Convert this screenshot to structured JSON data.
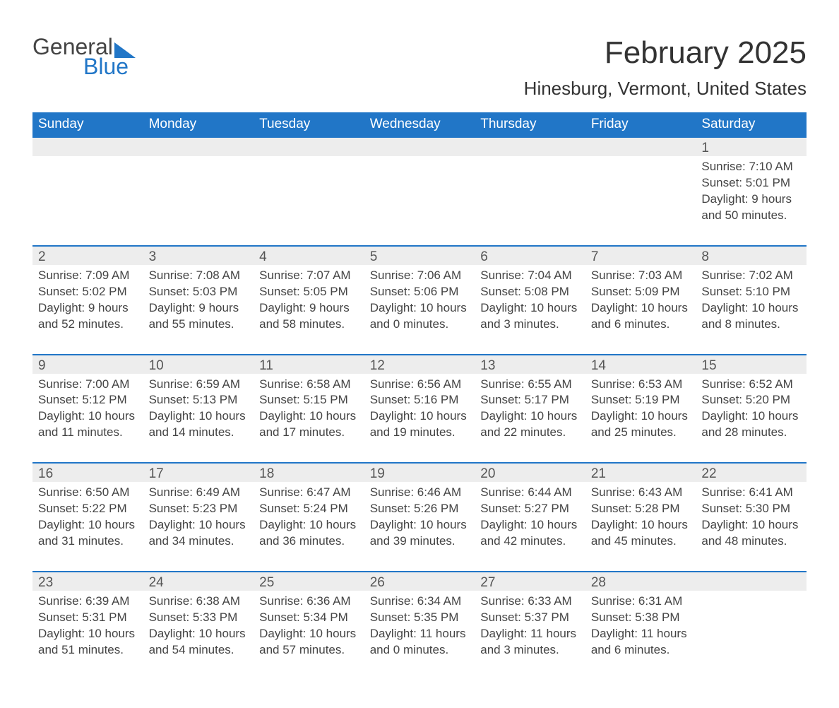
{
  "brand": {
    "word1": "General",
    "word2": "Blue",
    "accent_color": "#2176c7"
  },
  "title": "February 2025",
  "location": "Hinesburg, Vermont, United States",
  "colors": {
    "header_bg": "#2176c7",
    "header_text": "#ffffff",
    "daynum_bg": "#ededed",
    "row_border": "#2176c7",
    "body_text": "#444444",
    "page_bg": "#ffffff"
  },
  "typography": {
    "title_fontsize": 44,
    "location_fontsize": 26,
    "header_fontsize": 19,
    "cell_fontsize": 17
  },
  "layout": {
    "columns": 7,
    "rows": 5
  },
  "day_headers": [
    "Sunday",
    "Monday",
    "Tuesday",
    "Wednesday",
    "Thursday",
    "Friday",
    "Saturday"
  ],
  "weeks": [
    [
      {
        "day": "",
        "sunrise": "",
        "sunset": "",
        "daylight": ""
      },
      {
        "day": "",
        "sunrise": "",
        "sunset": "",
        "daylight": ""
      },
      {
        "day": "",
        "sunrise": "",
        "sunset": "",
        "daylight": ""
      },
      {
        "day": "",
        "sunrise": "",
        "sunset": "",
        "daylight": ""
      },
      {
        "day": "",
        "sunrise": "",
        "sunset": "",
        "daylight": ""
      },
      {
        "day": "",
        "sunrise": "",
        "sunset": "",
        "daylight": ""
      },
      {
        "day": "1",
        "sunrise": "Sunrise: 7:10 AM",
        "sunset": "Sunset: 5:01 PM",
        "daylight": "Daylight: 9 hours and 50 minutes."
      }
    ],
    [
      {
        "day": "2",
        "sunrise": "Sunrise: 7:09 AM",
        "sunset": "Sunset: 5:02 PM",
        "daylight": "Daylight: 9 hours and 52 minutes."
      },
      {
        "day": "3",
        "sunrise": "Sunrise: 7:08 AM",
        "sunset": "Sunset: 5:03 PM",
        "daylight": "Daylight: 9 hours and 55 minutes."
      },
      {
        "day": "4",
        "sunrise": "Sunrise: 7:07 AM",
        "sunset": "Sunset: 5:05 PM",
        "daylight": "Daylight: 9 hours and 58 minutes."
      },
      {
        "day": "5",
        "sunrise": "Sunrise: 7:06 AM",
        "sunset": "Sunset: 5:06 PM",
        "daylight": "Daylight: 10 hours and 0 minutes."
      },
      {
        "day": "6",
        "sunrise": "Sunrise: 7:04 AM",
        "sunset": "Sunset: 5:08 PM",
        "daylight": "Daylight: 10 hours and 3 minutes."
      },
      {
        "day": "7",
        "sunrise": "Sunrise: 7:03 AM",
        "sunset": "Sunset: 5:09 PM",
        "daylight": "Daylight: 10 hours and 6 minutes."
      },
      {
        "day": "8",
        "sunrise": "Sunrise: 7:02 AM",
        "sunset": "Sunset: 5:10 PM",
        "daylight": "Daylight: 10 hours and 8 minutes."
      }
    ],
    [
      {
        "day": "9",
        "sunrise": "Sunrise: 7:00 AM",
        "sunset": "Sunset: 5:12 PM",
        "daylight": "Daylight: 10 hours and 11 minutes."
      },
      {
        "day": "10",
        "sunrise": "Sunrise: 6:59 AM",
        "sunset": "Sunset: 5:13 PM",
        "daylight": "Daylight: 10 hours and 14 minutes."
      },
      {
        "day": "11",
        "sunrise": "Sunrise: 6:58 AM",
        "sunset": "Sunset: 5:15 PM",
        "daylight": "Daylight: 10 hours and 17 minutes."
      },
      {
        "day": "12",
        "sunrise": "Sunrise: 6:56 AM",
        "sunset": "Sunset: 5:16 PM",
        "daylight": "Daylight: 10 hours and 19 minutes."
      },
      {
        "day": "13",
        "sunrise": "Sunrise: 6:55 AM",
        "sunset": "Sunset: 5:17 PM",
        "daylight": "Daylight: 10 hours and 22 minutes."
      },
      {
        "day": "14",
        "sunrise": "Sunrise: 6:53 AM",
        "sunset": "Sunset: 5:19 PM",
        "daylight": "Daylight: 10 hours and 25 minutes."
      },
      {
        "day": "15",
        "sunrise": "Sunrise: 6:52 AM",
        "sunset": "Sunset: 5:20 PM",
        "daylight": "Daylight: 10 hours and 28 minutes."
      }
    ],
    [
      {
        "day": "16",
        "sunrise": "Sunrise: 6:50 AM",
        "sunset": "Sunset: 5:22 PM",
        "daylight": "Daylight: 10 hours and 31 minutes."
      },
      {
        "day": "17",
        "sunrise": "Sunrise: 6:49 AM",
        "sunset": "Sunset: 5:23 PM",
        "daylight": "Daylight: 10 hours and 34 minutes."
      },
      {
        "day": "18",
        "sunrise": "Sunrise: 6:47 AM",
        "sunset": "Sunset: 5:24 PM",
        "daylight": "Daylight: 10 hours and 36 minutes."
      },
      {
        "day": "19",
        "sunrise": "Sunrise: 6:46 AM",
        "sunset": "Sunset: 5:26 PM",
        "daylight": "Daylight: 10 hours and 39 minutes."
      },
      {
        "day": "20",
        "sunrise": "Sunrise: 6:44 AM",
        "sunset": "Sunset: 5:27 PM",
        "daylight": "Daylight: 10 hours and 42 minutes."
      },
      {
        "day": "21",
        "sunrise": "Sunrise: 6:43 AM",
        "sunset": "Sunset: 5:28 PM",
        "daylight": "Daylight: 10 hours and 45 minutes."
      },
      {
        "day": "22",
        "sunrise": "Sunrise: 6:41 AM",
        "sunset": "Sunset: 5:30 PM",
        "daylight": "Daylight: 10 hours and 48 minutes."
      }
    ],
    [
      {
        "day": "23",
        "sunrise": "Sunrise: 6:39 AM",
        "sunset": "Sunset: 5:31 PM",
        "daylight": "Daylight: 10 hours and 51 minutes."
      },
      {
        "day": "24",
        "sunrise": "Sunrise: 6:38 AM",
        "sunset": "Sunset: 5:33 PM",
        "daylight": "Daylight: 10 hours and 54 minutes."
      },
      {
        "day": "25",
        "sunrise": "Sunrise: 6:36 AM",
        "sunset": "Sunset: 5:34 PM",
        "daylight": "Daylight: 10 hours and 57 minutes."
      },
      {
        "day": "26",
        "sunrise": "Sunrise: 6:34 AM",
        "sunset": "Sunset: 5:35 PM",
        "daylight": "Daylight: 11 hours and 0 minutes."
      },
      {
        "day": "27",
        "sunrise": "Sunrise: 6:33 AM",
        "sunset": "Sunset: 5:37 PM",
        "daylight": "Daylight: 11 hours and 3 minutes."
      },
      {
        "day": "28",
        "sunrise": "Sunrise: 6:31 AM",
        "sunset": "Sunset: 5:38 PM",
        "daylight": "Daylight: 11 hours and 6 minutes."
      },
      {
        "day": "",
        "sunrise": "",
        "sunset": "",
        "daylight": ""
      }
    ]
  ]
}
